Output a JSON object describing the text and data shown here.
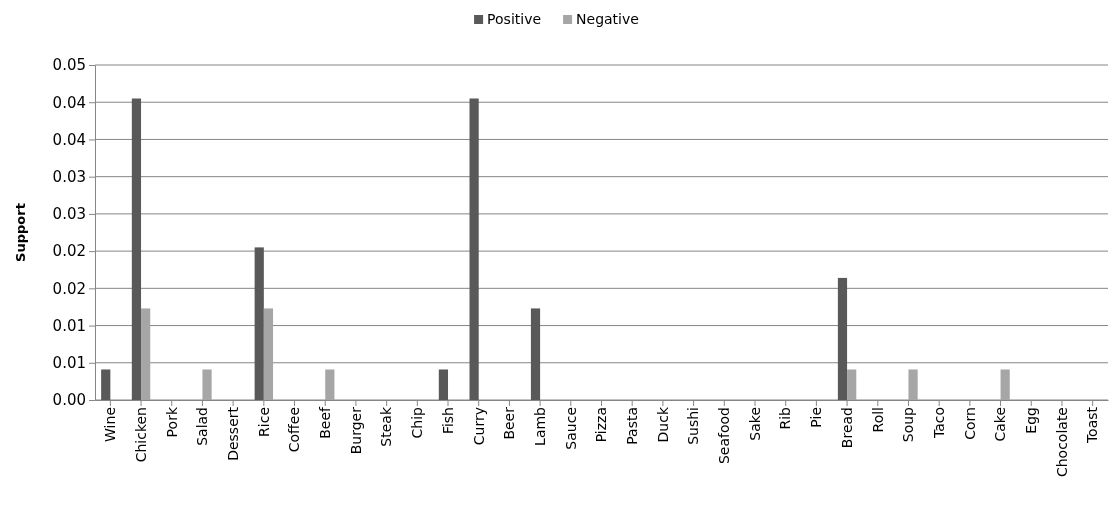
{
  "chart_data": {
    "type": "bar",
    "ylabel": "Support",
    "categories": [
      "Wine",
      "Chicken",
      "Pork",
      "Salad",
      "Dessert",
      "Rice",
      "Coffee",
      "Beef",
      "Burger",
      "Steak",
      "Chip",
      "Fish",
      "Curry",
      "Beer",
      "Lamb",
      "Sauce",
      "Pizza",
      "Pasta",
      "Duck",
      "Sushi",
      "Seafood",
      "Sake",
      "Rib",
      "Pie",
      "Bread",
      "Roll",
      "Soup",
      "Taco",
      "Corn",
      "Cake",
      "Egg",
      "Chocolate",
      "Toast"
    ],
    "series": [
      {
        "name": "Positive",
        "color": "#595959",
        "values": [
          0.0041,
          0.0405,
          0,
          0,
          0,
          0.0205,
          0,
          0,
          0,
          0,
          0,
          0.0041,
          0.0405,
          0,
          0.0123,
          0,
          0,
          0,
          0,
          0,
          0,
          0,
          0,
          0,
          0.0164,
          0,
          0,
          0,
          0,
          0,
          0,
          0,
          0
        ]
      },
      {
        "name": "Negative",
        "color": "#a6a6a6",
        "values": [
          0,
          0.0123,
          0,
          0.0041,
          0,
          0.0123,
          0,
          0.0041,
          0,
          0,
          0,
          0,
          0,
          0,
          0,
          0,
          0,
          0,
          0,
          0,
          0,
          0,
          0,
          0,
          0.0041,
          0,
          0.0041,
          0,
          0,
          0.0041,
          0,
          0,
          0
        ]
      }
    ],
    "ylim": [
      0,
      0.045
    ],
    "yticks": [
      {
        "value": 0,
        "label": "0.00"
      },
      {
        "value": 0.005,
        "label": "0.01"
      },
      {
        "value": 0.01,
        "label": "0.01"
      },
      {
        "value": 0.015,
        "label": "0.02"
      },
      {
        "value": 0.02,
        "label": "0.02"
      },
      {
        "value": 0.025,
        "label": "0.03"
      },
      {
        "value": 0.03,
        "label": "0.03"
      },
      {
        "value": 0.035,
        "label": "0.04"
      },
      {
        "value": 0.04,
        "label": "0.04"
      },
      {
        "value": 0.045,
        "label": "0.05"
      }
    ],
    "grid": "y",
    "legend": "top"
  }
}
